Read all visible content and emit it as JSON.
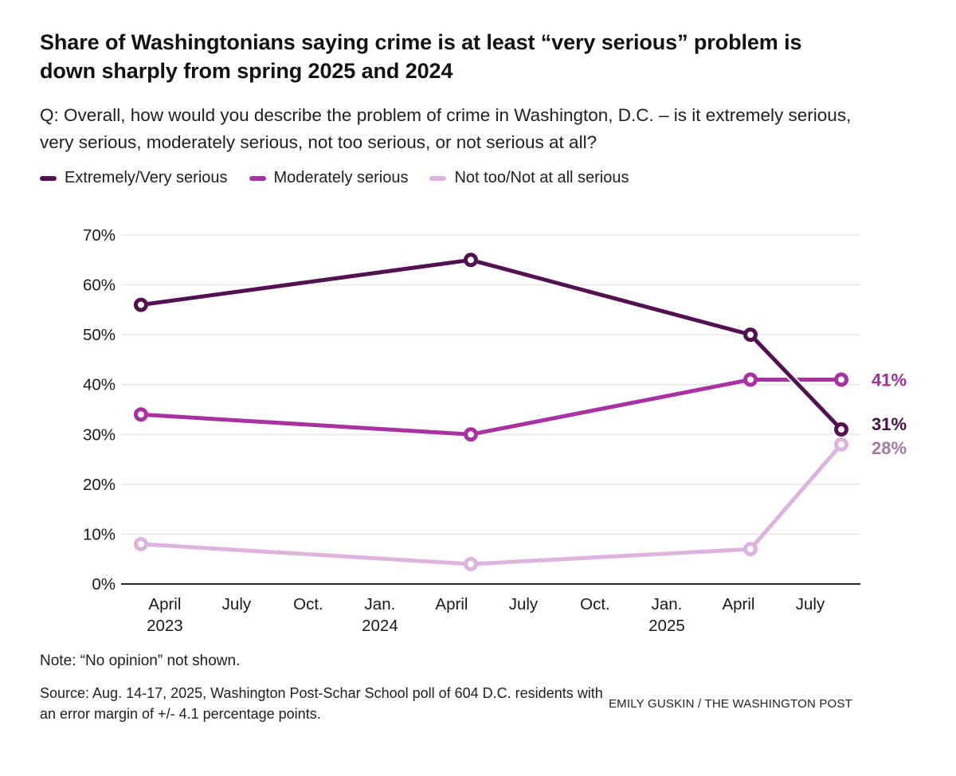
{
  "header": {
    "title": "Share of Washingtonians saying crime is at least “very serious” problem is down sharply from spring 2025 and 2024",
    "question": "Q: Overall, how would you describe the problem of crime in Washington, D.C. – is it extremely serious, very serious, moderately serious, not too serious, or not serious at all?"
  },
  "legend": {
    "items": [
      {
        "label": "Extremely/Very serious",
        "color": "#521151"
      },
      {
        "label": "Moderately serious",
        "color": "#a832a2"
      },
      {
        "label": "Not too/Not at all serious",
        "color": "#deb3de"
      }
    ]
  },
  "chart_data": {
    "type": "line",
    "title": "Share of Washingtonians saying crime is at least “very serious” problem is down sharply from spring 2025 and 2024",
    "grid": "horizontal",
    "legend_position": "top",
    "colors": {
      "grid": "#dedede",
      "axis": "#2a2a2a",
      "tick_text": "#1a1a1a"
    },
    "x_axis": {
      "unit": "months since Jan. 2023",
      "xlim": [
        1.17,
        32.1
      ],
      "ticks": [
        {
          "x": 3,
          "month": "April",
          "year": "2023"
        },
        {
          "x": 6,
          "month": "July",
          "year": ""
        },
        {
          "x": 9,
          "month": "Oct.",
          "year": ""
        },
        {
          "x": 12,
          "month": "Jan.",
          "year": "2024"
        },
        {
          "x": 15,
          "month": "April",
          "year": ""
        },
        {
          "x": 18,
          "month": "July",
          "year": ""
        },
        {
          "x": 21,
          "month": "Oct.",
          "year": ""
        },
        {
          "x": 24,
          "month": "Jan.",
          "year": "2025"
        },
        {
          "x": 27,
          "month": "April",
          "year": ""
        },
        {
          "x": 30,
          "month": "July",
          "year": ""
        }
      ]
    },
    "y_axis": {
      "ylim": [
        0,
        70
      ],
      "tick_step": 10,
      "tick_suffix": "%"
    },
    "series": [
      {
        "name": "Not too/Not at all serious",
        "color": "#deb3de",
        "label_color": "#a478a3",
        "end_label": "28%",
        "label_dy": 4,
        "casing": false,
        "points": [
          {
            "x": 2,
            "y": 8
          },
          {
            "x": 15.8,
            "y": 4
          },
          {
            "x": 27.5,
            "y": 7
          },
          {
            "x": 31.3,
            "y": 28
          }
        ]
      },
      {
        "name": "Moderately serious",
        "color": "#a832a2",
        "label_color": "#9c3097",
        "end_label": "41%",
        "label_dy": 0,
        "casing": false,
        "points": [
          {
            "x": 2,
            "y": 34
          },
          {
            "x": 15.8,
            "y": 30
          },
          {
            "x": 27.5,
            "y": 41
          },
          {
            "x": 31.3,
            "y": 41
          }
        ]
      },
      {
        "name": "Extremely/Very serious",
        "color": "#521151",
        "label_color": "#451046",
        "end_label": "31%",
        "label_dy": -7,
        "casing": true,
        "points": [
          {
            "x": 2,
            "y": 56
          },
          {
            "x": 15.8,
            "y": 65
          },
          {
            "x": 27.5,
            "y": 50
          },
          {
            "x": 31.3,
            "y": 31
          }
        ]
      }
    ]
  },
  "footer": {
    "note": "Note: “No opinion” not shown.",
    "source": "Source: Aug. 14-17, 2025, Washington Post-Schar School poll of 604 D.C. residents with an error margin of +/- 4.1 percentage points.",
    "credit": "EMILY GUSKIN / THE WASHINGTON POST"
  }
}
